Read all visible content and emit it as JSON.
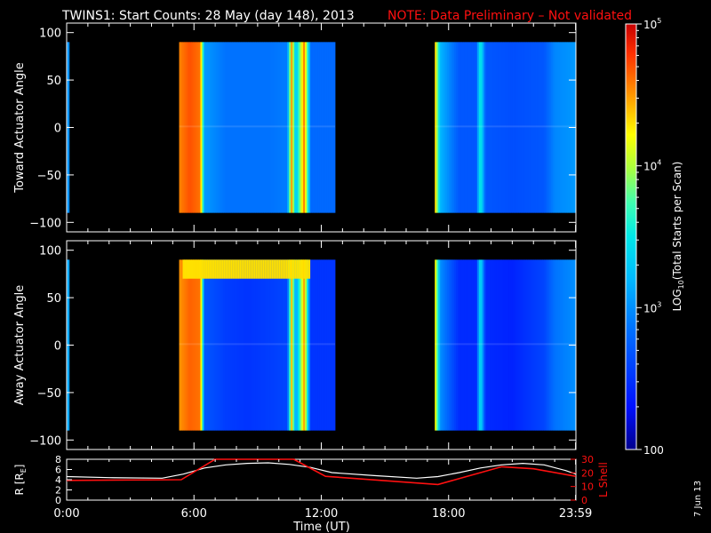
{
  "title": {
    "main": "TWINS1: Start Counts: 28 May (day 148), 2013",
    "note": "NOTE: Data Preliminary – Not validated"
  },
  "date_stamp": "7 Jun 13",
  "colors": {
    "background": "#000000",
    "axes": "#ffffff",
    "note": "#ff1010",
    "r_line": "#ffffff",
    "lshell_line": "#ff1010"
  },
  "colorbar": {
    "label_prefix": "LOG",
    "label_sub": "10",
    "label_suffix": "(Total Starts per Scan)",
    "scale": "log",
    "range": [
      100,
      100000
    ],
    "ticks": [
      {
        "value": 100000,
        "base": "10",
        "exp": "5"
      },
      {
        "value": 10000,
        "base": "10",
        "exp": "4"
      },
      {
        "value": 1000,
        "base": "10",
        "exp": "3"
      },
      {
        "value": 100,
        "base": "100",
        "exp": ""
      }
    ]
  },
  "chart_data": [
    {
      "type": "heatmap",
      "ylabel": "Toward Actuator Angle",
      "ylim": [
        -110,
        110
      ],
      "y_ticks": [
        "100",
        "50",
        "0",
        "−50",
        "−100"
      ],
      "y_tick_values": [
        100,
        50,
        0,
        -50,
        -100
      ],
      "x_unit": "hours UT",
      "xlim": [
        0,
        24
      ],
      "angle_range": [
        -90,
        90
      ],
      "data_segments": [
        {
          "start": 0.0,
          "end": 0.12
        },
        {
          "start": 5.3,
          "end": 12.65
        },
        {
          "start": 17.35,
          "end": 24.0
        }
      ],
      "time_profile_log10": [
        {
          "t": 0.0,
          "v": 3.0
        },
        {
          "t": 0.12,
          "v": 3.0
        },
        {
          "t": 5.3,
          "v": 4.55
        },
        {
          "t": 5.8,
          "v": 4.7
        },
        {
          "t": 6.3,
          "v": 4.6
        },
        {
          "t": 6.5,
          "v": 3.05
        },
        {
          "t": 7.5,
          "v": 2.85
        },
        {
          "t": 8.5,
          "v": 2.85
        },
        {
          "t": 9.5,
          "v": 2.85
        },
        {
          "t": 10.4,
          "v": 2.9
        },
        {
          "t": 10.6,
          "v": 4.5
        },
        {
          "t": 10.8,
          "v": 3.2
        },
        {
          "t": 11.2,
          "v": 4.6
        },
        {
          "t": 11.5,
          "v": 2.8
        },
        {
          "t": 12.65,
          "v": 2.8
        },
        {
          "t": 17.35,
          "v": 4.5
        },
        {
          "t": 17.6,
          "v": 3.2
        },
        {
          "t": 18.5,
          "v": 2.7
        },
        {
          "t": 19.3,
          "v": 2.7
        },
        {
          "t": 19.5,
          "v": 3.6
        },
        {
          "t": 19.75,
          "v": 2.7
        },
        {
          "t": 21.0,
          "v": 2.65
        },
        {
          "t": 22.5,
          "v": 2.7
        },
        {
          "t": 23.0,
          "v": 2.95
        },
        {
          "t": 24.0,
          "v": 3.05
        }
      ]
    },
    {
      "type": "heatmap",
      "ylabel": "Away Actuator Angle",
      "ylim": [
        -110,
        110
      ],
      "y_ticks": [
        "100",
        "50",
        "0",
        "−50",
        "−100"
      ],
      "y_tick_values": [
        100,
        50,
        0,
        -50,
        -100
      ],
      "x_unit": "hours UT",
      "xlim": [
        0,
        24
      ],
      "angle_range": [
        -90,
        90
      ],
      "data_segments": [
        {
          "start": 0.0,
          "end": 0.12
        },
        {
          "start": 5.3,
          "end": 12.65
        },
        {
          "start": 17.35,
          "end": 24.0
        }
      ],
      "time_profile_log10": [
        {
          "t": 0.0,
          "v": 3.1
        },
        {
          "t": 0.12,
          "v": 3.1
        },
        {
          "t": 5.3,
          "v": 4.5
        },
        {
          "t": 5.8,
          "v": 4.65
        },
        {
          "t": 6.3,
          "v": 4.6
        },
        {
          "t": 6.5,
          "v": 2.7
        },
        {
          "t": 7.5,
          "v": 2.55
        },
        {
          "t": 8.5,
          "v": 2.5
        },
        {
          "t": 9.5,
          "v": 2.55
        },
        {
          "t": 10.4,
          "v": 2.6
        },
        {
          "t": 10.6,
          "v": 4.4
        },
        {
          "t": 10.8,
          "v": 3.0
        },
        {
          "t": 11.2,
          "v": 4.5
        },
        {
          "t": 11.5,
          "v": 2.5
        },
        {
          "t": 12.65,
          "v": 2.5
        },
        {
          "t": 17.35,
          "v": 4.4
        },
        {
          "t": 17.6,
          "v": 3.0
        },
        {
          "t": 18.5,
          "v": 2.45
        },
        {
          "t": 19.3,
          "v": 2.45
        },
        {
          "t": 19.5,
          "v": 3.5
        },
        {
          "t": 19.75,
          "v": 2.45
        },
        {
          "t": 21.0,
          "v": 2.4
        },
        {
          "t": 22.5,
          "v": 2.6
        },
        {
          "t": 23.0,
          "v": 2.85
        },
        {
          "t": 24.0,
          "v": 3.0
        }
      ],
      "top_band_log10": 4.3
    },
    {
      "type": "line",
      "xlabel": "Time (UT)",
      "xlim": [
        0,
        24
      ],
      "x_ticks": [
        {
          "value": 0,
          "label": "0:00"
        },
        {
          "value": 6,
          "label": "6:00"
        },
        {
          "value": 12,
          "label": "12:00"
        },
        {
          "value": 18,
          "label": "18:00"
        },
        {
          "value": 23.983,
          "label": "23:59"
        }
      ],
      "ylabel_left": "R [R",
      "ylabel_left_sub": "E",
      "ylabel_left_end": "]",
      "ylim_left": [
        0,
        8
      ],
      "y_ticks_left": [
        "0",
        "2",
        "4",
        "6",
        "8"
      ],
      "ylabel_right": "L Shell",
      "ylim_right": [
        0,
        30
      ],
      "y_ticks_right": [
        "0",
        "10",
        "20",
        "30"
      ],
      "series": [
        {
          "axis": "left",
          "x": [
            0,
            2,
            4.5,
            5.5,
            6.5,
            7.5,
            8.5,
            9.5,
            10.5,
            11.5,
            12.5,
            14.5,
            16.5,
            17.5,
            18.5,
            19.5,
            20.5,
            21.5,
            22.5,
            23.5,
            24
          ],
          "y": [
            4.6,
            4.4,
            4.3,
            5.1,
            6.3,
            6.9,
            7.2,
            7.3,
            7.0,
            6.4,
            5.4,
            4.8,
            4.3,
            4.6,
            5.4,
            6.3,
            6.9,
            7.2,
            6.9,
            5.8,
            5.1
          ]
        },
        {
          "axis": "right",
          "x": [
            0,
            5.4,
            7,
            10.7,
            12.2,
            17.5,
            20.5,
            22,
            23.99
          ],
          "y": [
            14.5,
            15,
            31,
            31,
            17.5,
            11.5,
            24.5,
            23,
            17.5
          ]
        }
      ]
    }
  ]
}
